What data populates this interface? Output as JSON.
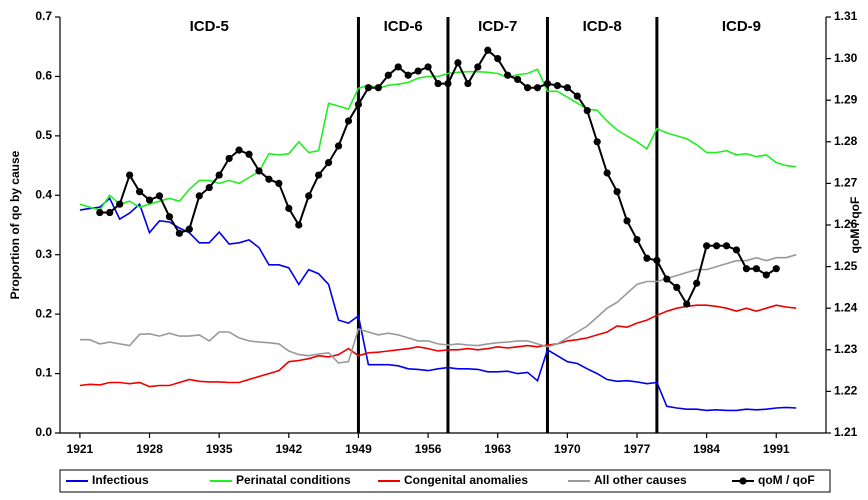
{
  "chart_data": {
    "type": "line",
    "y_label": "Proportion of qo by cause",
    "y2_label": "qoM / qoF",
    "x": [
      1921,
      1922,
      1923,
      1924,
      1925,
      1926,
      1927,
      1928,
      1929,
      1930,
      1931,
      1932,
      1933,
      1934,
      1935,
      1936,
      1937,
      1938,
      1939,
      1940,
      1941,
      1942,
      1943,
      1944,
      1945,
      1946,
      1947,
      1948,
      1949,
      1950,
      1951,
      1952,
      1953,
      1954,
      1955,
      1956,
      1957,
      1958,
      1959,
      1960,
      1961,
      1962,
      1963,
      1964,
      1965,
      1966,
      1967,
      1968,
      1969,
      1970,
      1971,
      1972,
      1973,
      1974,
      1975,
      1976,
      1977,
      1978,
      1979,
      1980,
      1981,
      1982,
      1983,
      1984,
      1985,
      1986,
      1987,
      1988,
      1989,
      1990,
      1991,
      1992,
      1993
    ],
    "xlim": [
      1919,
      1996
    ],
    "xticks": [
      1921,
      1928,
      1935,
      1942,
      1949,
      1956,
      1963,
      1970,
      1977,
      1984,
      1991
    ],
    "ylim": [
      0,
      0.7
    ],
    "yticks": [
      {
        "value": 0,
        "label": "0.0"
      },
      0.1,
      0.2,
      0.3,
      0.4,
      0.5,
      0.6,
      0.7
    ],
    "y2lim": [
      1.21,
      1.31
    ],
    "y2ticks": [
      1.21,
      1.22,
      1.23,
      1.24,
      1.25,
      1.26,
      1.27,
      1.28,
      1.29,
      {
        "value": 1.3,
        "label": "1.30"
      },
      1.31
    ],
    "revisions": [
      1949,
      1958,
      1968,
      1979
    ],
    "revision_labels": [
      "ICD-5",
      "ICD-6",
      "ICD-7",
      "ICD-8",
      "ICD-9"
    ],
    "legend": "bottom",
    "series": [
      {
        "name": "Infectious",
        "color": "#0000ee",
        "values": [
          0.375,
          0.378,
          0.38,
          0.395,
          0.36,
          0.37,
          0.385,
          0.337,
          0.357,
          0.355,
          0.345,
          0.337,
          0.32,
          0.32,
          0.338,
          0.318,
          0.32,
          0.325,
          0.312,
          0.283,
          0.283,
          0.278,
          0.25,
          0.275,
          0.268,
          0.25,
          0.19,
          0.185,
          0.197,
          0.115,
          0.115,
          0.115,
          0.113,
          0.108,
          0.107,
          0.105,
          0.108,
          0.11,
          0.108,
          0.108,
          0.107,
          0.103,
          0.103,
          0.104,
          0.1,
          0.102,
          0.088,
          0.14,
          0.13,
          0.12,
          0.117,
          0.108,
          0.1,
          0.09,
          0.087,
          0.088,
          0.086,
          0.083,
          0.085,
          0.045,
          0.042,
          0.04,
          0.04,
          0.038,
          0.039,
          0.038,
          0.038,
          0.04,
          0.039,
          0.04,
          0.042,
          0.043,
          0.042
        ]
      },
      {
        "name": "Perinatal conditions",
        "color": "#22ee22",
        "values": [
          0.385,
          0.38,
          0.375,
          0.4,
          0.385,
          0.39,
          0.38,
          0.385,
          0.39,
          0.395,
          0.39,
          0.41,
          0.425,
          0.425,
          0.42,
          0.425,
          0.42,
          0.43,
          0.44,
          0.47,
          0.468,
          0.47,
          0.49,
          0.472,
          0.475,
          0.555,
          0.55,
          0.545,
          0.58,
          0.585,
          0.58,
          0.585,
          0.587,
          0.59,
          0.597,
          0.6,
          0.6,
          0.605,
          0.607,
          0.608,
          0.608,
          0.607,
          0.605,
          0.598,
          0.603,
          0.605,
          0.612,
          0.575,
          0.575,
          0.565,
          0.555,
          0.545,
          0.543,
          0.525,
          0.51,
          0.5,
          0.49,
          0.478,
          0.512,
          0.505,
          0.5,
          0.495,
          0.485,
          0.472,
          0.472,
          0.475,
          0.468,
          0.47,
          0.465,
          0.468,
          0.455,
          0.45,
          0.448
        ]
      },
      {
        "name": "Congenital anomalies",
        "color": "#ee0000",
        "values": [
          0.08,
          0.082,
          0.081,
          0.085,
          0.085,
          0.083,
          0.085,
          0.078,
          0.08,
          0.08,
          0.085,
          0.09,
          0.087,
          0.086,
          0.086,
          0.085,
          0.085,
          0.09,
          0.095,
          0.1,
          0.105,
          0.12,
          0.122,
          0.125,
          0.13,
          0.128,
          0.132,
          0.142,
          0.13,
          0.135,
          0.136,
          0.138,
          0.14,
          0.142,
          0.145,
          0.142,
          0.138,
          0.14,
          0.14,
          0.142,
          0.14,
          0.142,
          0.145,
          0.143,
          0.145,
          0.147,
          0.145,
          0.148,
          0.15,
          0.155,
          0.157,
          0.16,
          0.165,
          0.17,
          0.18,
          0.178,
          0.185,
          0.19,
          0.198,
          0.205,
          0.21,
          0.213,
          0.215,
          0.215,
          0.213,
          0.21,
          0.205,
          0.21,
          0.205,
          0.21,
          0.215,
          0.212,
          0.21
        ]
      },
      {
        "name": "All other causes",
        "color": "#999999",
        "values": [
          0.157,
          0.157,
          0.15,
          0.153,
          0.15,
          0.147,
          0.166,
          0.167,
          0.163,
          0.168,
          0.163,
          0.163,
          0.165,
          0.155,
          0.17,
          0.17,
          0.16,
          0.155,
          0.153,
          0.152,
          0.15,
          0.138,
          0.132,
          0.13,
          0.133,
          0.135,
          0.118,
          0.12,
          0.175,
          0.17,
          0.165,
          0.168,
          0.165,
          0.16,
          0.155,
          0.155,
          0.15,
          0.148,
          0.15,
          0.148,
          0.147,
          0.15,
          0.152,
          0.153,
          0.155,
          0.155,
          0.15,
          0.145,
          0.15,
          0.16,
          0.17,
          0.18,
          0.195,
          0.21,
          0.22,
          0.235,
          0.25,
          0.255,
          0.255,
          0.26,
          0.265,
          0.27,
          0.275,
          0.275,
          0.28,
          0.285,
          0.29,
          0.29,
          0.295,
          0.29,
          0.295,
          0.295,
          0.3
        ]
      },
      {
        "name": "qoM / qoF",
        "color": "#000000",
        "axis": "y2",
        "marker": "circle",
        "values": [
          null,
          null,
          1.263,
          1.263,
          1.265,
          1.272,
          1.268,
          1.266,
          1.267,
          1.262,
          1.258,
          1.259,
          1.267,
          1.269,
          1.272,
          1.276,
          1.278,
          1.277,
          1.273,
          1.271,
          1.27,
          1.264,
          1.26,
          1.267,
          1.272,
          1.275,
          1.279,
          1.285,
          1.289,
          1.293,
          1.293,
          1.296,
          1.298,
          1.296,
          1.297,
          1.298,
          1.294,
          1.294,
          1.299,
          1.294,
          1.298,
          1.302,
          1.3,
          1.296,
          1.295,
          1.293,
          1.293,
          1.294,
          1.2935,
          1.293,
          1.291,
          1.2875,
          1.28,
          1.2725,
          1.268,
          1.261,
          1.2565,
          1.252,
          1.2515,
          1.247,
          1.245,
          1.241,
          1.246,
          1.255,
          1.255,
          1.255,
          1.254,
          1.2495,
          1.2495,
          1.248,
          1.2495,
          null,
          null
        ]
      }
    ]
  }
}
